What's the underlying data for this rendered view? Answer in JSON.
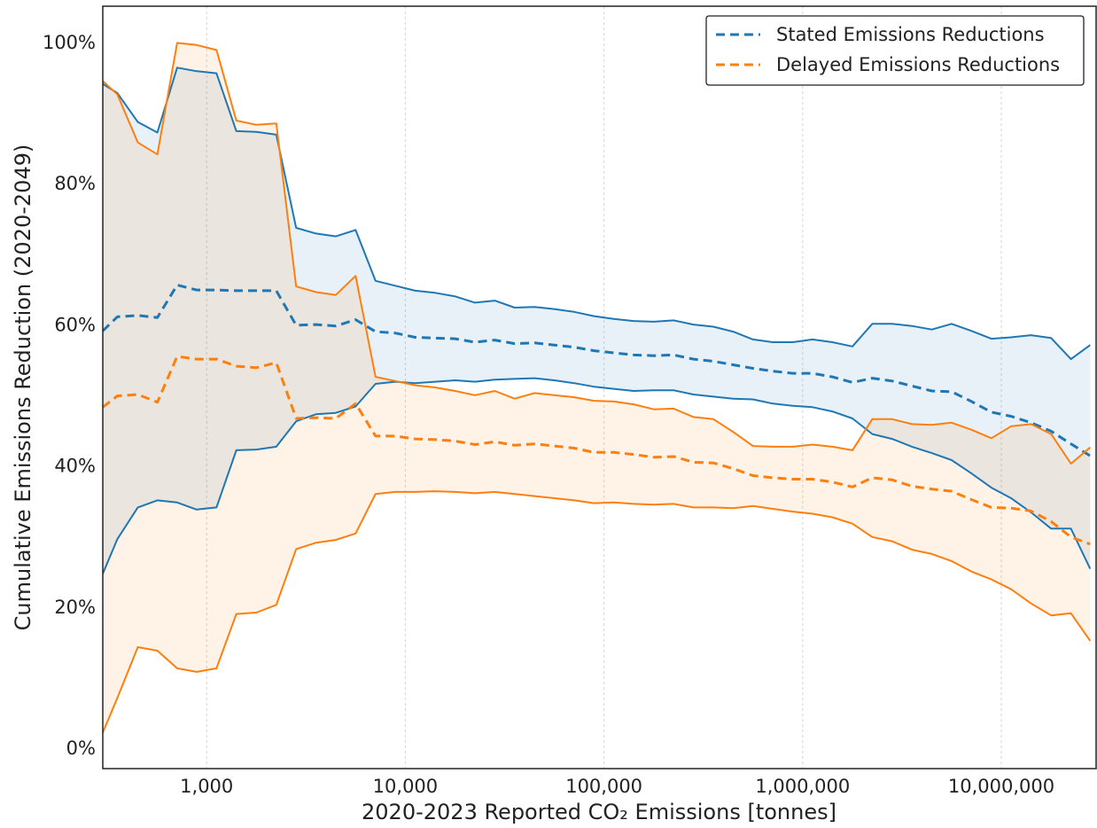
{
  "chart_data": {
    "type": "line",
    "xscale": "log",
    "xlim": [
      300,
      30000000
    ],
    "ylim": [
      -0.03,
      1.05
    ],
    "grid": "vertical",
    "legend_position": "top-right",
    "xlabel": "2020-2023 Reported CO₂ Emissions [tonnes]",
    "ylabel": "Cumulative Emissions Reduction (2020-2049)",
    "x_ticks": [
      1000,
      10000,
      100000,
      1000000,
      10000000
    ],
    "x_tick_labels": [
      "1,000",
      "10,000",
      "100,000",
      "1,000,000",
      "10,000,000"
    ],
    "y_ticks": [
      0,
      0.2,
      0.4,
      0.6,
      0.8,
      1.0
    ],
    "y_tick_labels": [
      "0%",
      "20%",
      "40%",
      "60%",
      "80%",
      "100%"
    ],
    "x": [
      300,
      355,
      450,
      565,
      710,
      890,
      1120,
      1410,
      1780,
      2240,
      2820,
      3550,
      4470,
      5620,
      7080,
      8900,
      11200,
      14100,
      17800,
      22400,
      28200,
      35500,
      44700,
      56200,
      70800,
      89100,
      112000,
      141000,
      178000,
      224000,
      282000,
      355000,
      447000,
      562000,
      708000,
      891000,
      1120000,
      1410000,
      1780000,
      2240000,
      2820000,
      3550000,
      4470000,
      5620000,
      7080000,
      8910000,
      11200000,
      14100000,
      17800000,
      22400000,
      28000000
    ],
    "series": [
      {
        "name": "Stated Emissions Reductions",
        "color": "#1f77b4",
        "mean": [
          0.59,
          0.61,
          0.612,
          0.609,
          0.655,
          0.648,
          0.648,
          0.647,
          0.647,
          0.647,
          0.598,
          0.599,
          0.597,
          0.606,
          0.589,
          0.587,
          0.581,
          0.58,
          0.579,
          0.574,
          0.577,
          0.572,
          0.573,
          0.57,
          0.567,
          0.562,
          0.559,
          0.556,
          0.555,
          0.556,
          0.55,
          0.547,
          0.542,
          0.537,
          0.533,
          0.53,
          0.53,
          0.525,
          0.517,
          0.523,
          0.519,
          0.512,
          0.505,
          0.504,
          0.49,
          0.475,
          0.469,
          0.46,
          0.448,
          0.43,
          0.413
        ],
        "upper": [
          0.94,
          0.927,
          0.886,
          0.871,
          0.963,
          0.958,
          0.955,
          0.873,
          0.872,
          0.868,
          0.736,
          0.728,
          0.724,
          0.733,
          0.661,
          0.654,
          0.647,
          0.644,
          0.639,
          0.63,
          0.633,
          0.623,
          0.624,
          0.621,
          0.617,
          0.611,
          0.607,
          0.604,
          0.603,
          0.605,
          0.599,
          0.596,
          0.589,
          0.578,
          0.574,
          0.574,
          0.578,
          0.574,
          0.568,
          0.6,
          0.6,
          0.597,
          0.592,
          0.6,
          0.59,
          0.579,
          0.581,
          0.584,
          0.58,
          0.55,
          0.57
        ],
        "lower": [
          0.246,
          0.295,
          0.34,
          0.35,
          0.347,
          0.337,
          0.34,
          0.421,
          0.422,
          0.426,
          0.462,
          0.472,
          0.474,
          0.483,
          0.515,
          0.518,
          0.516,
          0.518,
          0.52,
          0.518,
          0.521,
          0.522,
          0.523,
          0.52,
          0.516,
          0.511,
          0.508,
          0.505,
          0.506,
          0.506,
          0.5,
          0.497,
          0.494,
          0.493,
          0.487,
          0.484,
          0.482,
          0.476,
          0.466,
          0.444,
          0.437,
          0.426,
          0.417,
          0.407,
          0.388,
          0.368,
          0.353,
          0.333,
          0.31,
          0.31,
          0.253
        ]
      },
      {
        "name": "Delayed Emissions Reductions",
        "color": "#ff7f0e",
        "mean": [
          0.482,
          0.498,
          0.5,
          0.489,
          0.554,
          0.55,
          0.55,
          0.54,
          0.538,
          0.545,
          0.466,
          0.467,
          0.466,
          0.487,
          0.441,
          0.441,
          0.437,
          0.436,
          0.434,
          0.429,
          0.433,
          0.428,
          0.43,
          0.427,
          0.424,
          0.418,
          0.418,
          0.415,
          0.411,
          0.412,
          0.404,
          0.403,
          0.395,
          0.385,
          0.382,
          0.38,
          0.38,
          0.376,
          0.369,
          0.382,
          0.379,
          0.37,
          0.366,
          0.363,
          0.351,
          0.34,
          0.339,
          0.335,
          0.32,
          0.298,
          0.288
        ],
        "upper": [
          0.944,
          0.925,
          0.857,
          0.84,
          0.998,
          0.995,
          0.988,
          0.888,
          0.882,
          0.884,
          0.653,
          0.645,
          0.641,
          0.668,
          0.525,
          0.519,
          0.513,
          0.51,
          0.505,
          0.499,
          0.505,
          0.494,
          0.502,
          0.499,
          0.496,
          0.491,
          0.49,
          0.486,
          0.479,
          0.48,
          0.468,
          0.465,
          0.447,
          0.427,
          0.426,
          0.426,
          0.429,
          0.426,
          0.421,
          0.465,
          0.465,
          0.458,
          0.457,
          0.46,
          0.45,
          0.438,
          0.455,
          0.458,
          0.444,
          0.402,
          0.425
        ],
        "lower": [
          0.021,
          0.07,
          0.142,
          0.137,
          0.112,
          0.107,
          0.112,
          0.189,
          0.191,
          0.202,
          0.281,
          0.29,
          0.294,
          0.303,
          0.359,
          0.362,
          0.362,
          0.363,
          0.362,
          0.36,
          0.362,
          0.359,
          0.356,
          0.353,
          0.35,
          0.346,
          0.347,
          0.345,
          0.344,
          0.345,
          0.34,
          0.34,
          0.339,
          0.342,
          0.338,
          0.334,
          0.331,
          0.326,
          0.317,
          0.298,
          0.292,
          0.28,
          0.274,
          0.264,
          0.249,
          0.238,
          0.224,
          0.204,
          0.187,
          0.19,
          0.151
        ]
      }
    ]
  }
}
